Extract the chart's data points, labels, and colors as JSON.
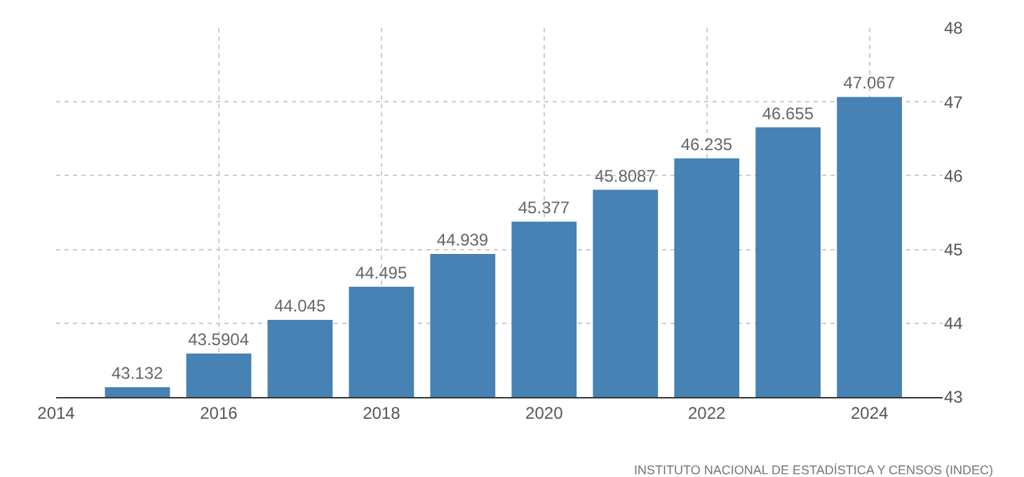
{
  "chart_data": {
    "type": "bar",
    "x": [
      2015,
      2016,
      2017,
      2018,
      2019,
      2020,
      2021,
      2022,
      2023,
      2024
    ],
    "values": [
      43.132,
      43.5904,
      44.045,
      44.495,
      44.939,
      45.377,
      45.8087,
      46.235,
      46.655,
      47.067
    ],
    "color": "#4682b4",
    "data_labels": true,
    "xlim": [
      2014,
      2024.9
    ],
    "xticks": [
      2014,
      2016,
      2018,
      2020,
      2022,
      2024
    ],
    "ylim": [
      43,
      48
    ],
    "yticks": [
      43,
      44,
      45,
      46,
      47,
      48
    ],
    "grid": true,
    "legend": false,
    "annotations": [
      "INSTITUTO NACIONAL DE ESTADÍSTICA Y CENSOS (INDEC)"
    ]
  }
}
